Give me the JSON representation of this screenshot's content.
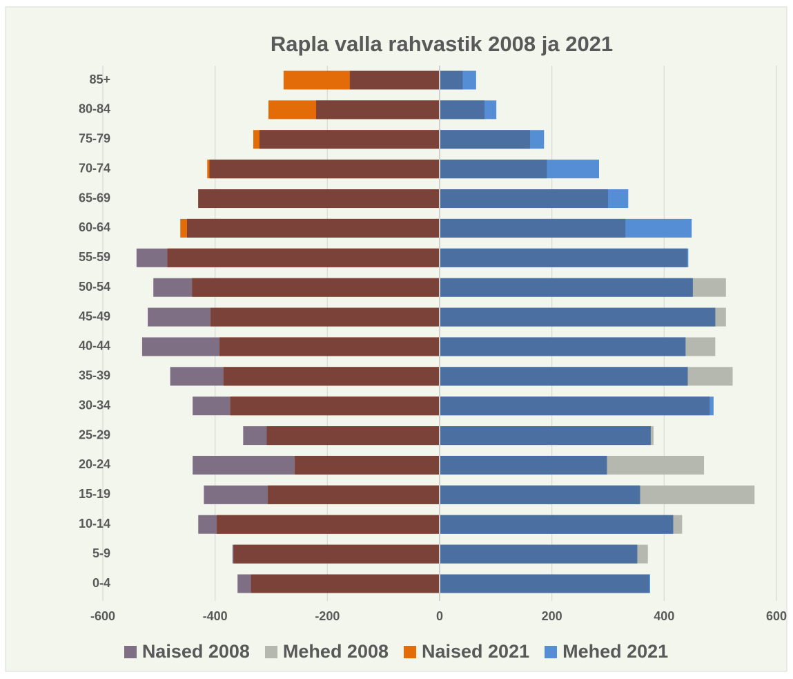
{
  "chart_data": {
    "type": "pyramid",
    "title": "Rapla valla rahvastik 2008 ja 2021",
    "categories": [
      "0-4",
      "5-9",
      "10-14",
      "15-19",
      "20-24",
      "25-29",
      "30-34",
      "35-39",
      "40-44",
      "45-49",
      "50-54",
      "55-59",
      "60-64",
      "65-69",
      "70-74",
      "75-79",
      "80-84",
      "85+"
    ],
    "series": [
      {
        "name": "Naised 2008",
        "color": "#7f6f85",
        "values": [
          -360,
          -369,
          -430,
          -420,
          -440,
          -350,
          -440,
          -480,
          -530,
          -520,
          -510,
          -540,
          -450,
          -430,
          -410,
          -321,
          -220,
          -160
        ]
      },
      {
        "name": "Mehed 2008",
        "color": "#b5b8ae",
        "values": [
          373,
          371,
          432,
          561,
          471,
          381,
          481,
          522,
          491,
          510,
          510,
          441,
          331,
          300,
          191,
          161,
          80,
          41
        ]
      },
      {
        "name": "Naised 2021",
        "color": "#e36c09",
        "values": [
          -336,
          -367,
          -397,
          -306,
          -258,
          -308,
          -373,
          -385,
          -392,
          -408,
          -441,
          -485,
          -462,
          -430,
          -414,
          -332,
          -305,
          -278
        ]
      },
      {
        "name": "Mehed 2021",
        "color": "#558ed5",
        "values": [
          375,
          352,
          416,
          357,
          298,
          376,
          488,
          442,
          438,
          491,
          451,
          443,
          449,
          336,
          284,
          186,
          101,
          65
        ]
      }
    ],
    "xlim": [
      -600,
      600
    ],
    "xticks": [
      -600,
      -400,
      -200,
      0,
      200,
      400,
      600
    ],
    "grid": true,
    "legend": "bottom"
  }
}
